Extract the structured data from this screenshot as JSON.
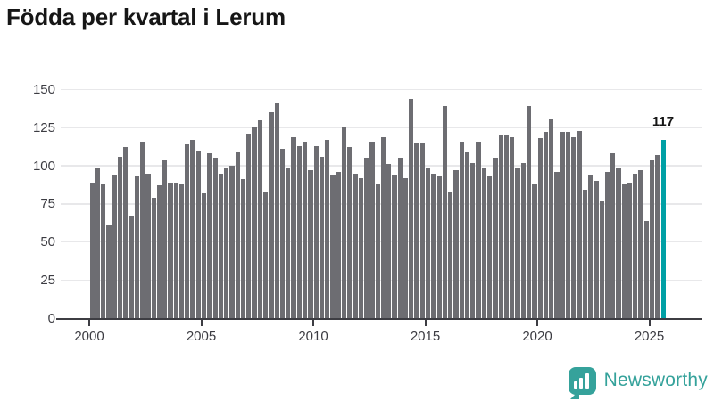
{
  "title": "Födda per kvartal i Lerum",
  "annotation": {
    "last_value_label": "117"
  },
  "branding": {
    "logo_text": "Newsworthy"
  },
  "colors": {
    "bar": "#6d6d72",
    "highlight": "#00a0a5",
    "grid": "#e8e8ea",
    "axis": "#3d3d43",
    "tick_label": "#3c3c42",
    "title": "#161616",
    "logo": "#35a29b"
  },
  "chart_data": {
    "type": "bar",
    "title": "Födda per kvartal i Lerum",
    "xlabel": "",
    "ylabel": "",
    "ylim": [
      0,
      150
    ],
    "grid": true,
    "start_period": "2000-Q1",
    "end_period": "2025-Q3",
    "periods_per_year": 4,
    "y_tick_values": [
      0,
      25,
      50,
      75,
      100,
      125,
      150
    ],
    "y_tick_labels": [
      "0",
      "25",
      "50",
      "75",
      "100",
      "125",
      "150"
    ],
    "x_tick_years": [
      "2000",
      "2005",
      "2010",
      "2015",
      "2020",
      "2025"
    ],
    "highlight_last_bar": true,
    "last_bar_label": "117",
    "values": [
      89,
      98,
      88,
      61,
      94,
      106,
      112,
      67,
      93,
      116,
      95,
      79,
      87,
      104,
      89,
      89,
      88,
      114,
      117,
      110,
      82,
      108,
      105,
      95,
      99,
      100,
      109,
      91,
      121,
      125,
      130,
      83,
      135,
      141,
      111,
      99,
      119,
      113,
      116,
      97,
      113,
      106,
      117,
      94,
      96,
      126,
      112,
      95,
      92,
      105,
      116,
      88,
      119,
      101,
      94,
      105,
      92,
      144,
      115,
      115,
      98,
      95,
      93,
      139,
      83,
      97,
      116,
      109,
      102,
      116,
      98,
      93,
      105,
      120,
      120,
      119,
      99,
      102,
      139,
      88,
      118,
      122,
      131,
      96,
      122,
      122,
      119,
      123,
      84,
      94,
      90,
      77,
      96,
      108,
      99,
      88,
      89,
      95,
      97,
      64,
      104,
      107,
      117
    ]
  }
}
